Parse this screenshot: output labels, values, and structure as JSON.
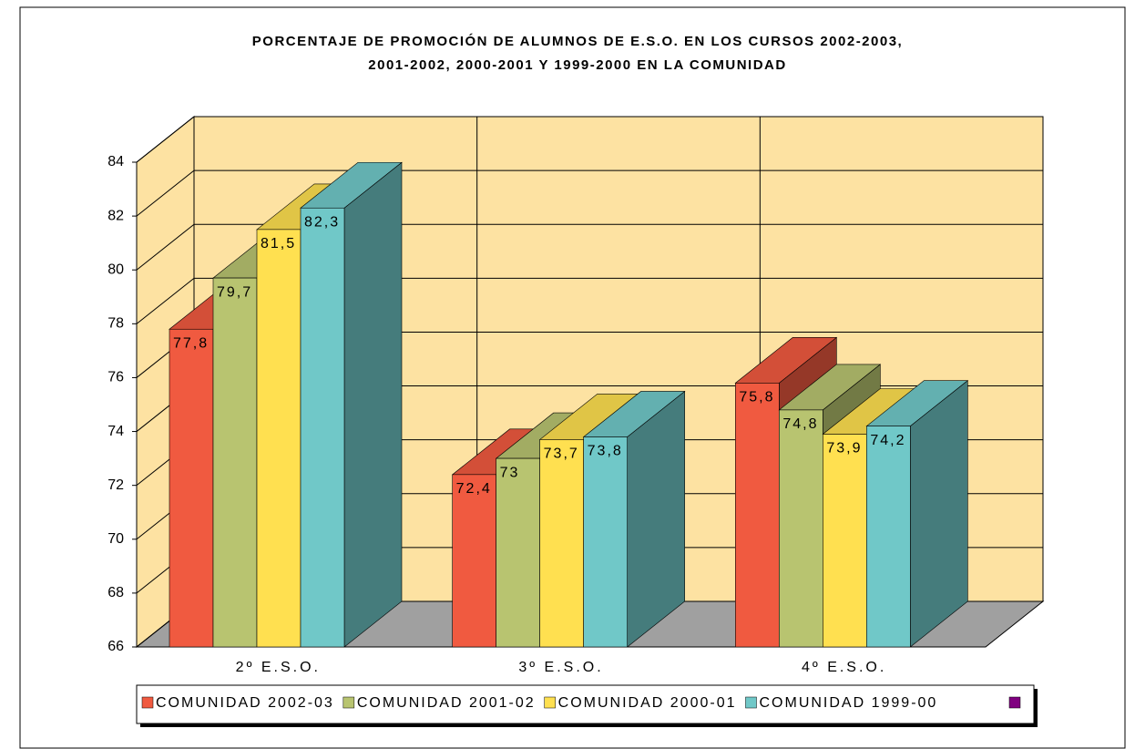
{
  "chart_data": {
    "type": "bar3d",
    "title": "PORCENTAJE DE PROMOCIÓN DE ALUMNOS DE E.S.O. EN LOS CURSOS 2002-2003,",
    "subtitle": "2001-2002, 2000-2001 Y 1999-2000 EN LA COMUNIDAD",
    "categories": [
      "2º  E.S.O.",
      "3º E.S.O.",
      "4º E.S.O."
    ],
    "series": [
      {
        "name": "COMUNIDAD 2002-03",
        "color": "#f05a40",
        "values": [
          77.8,
          72.4,
          75.8
        ],
        "value_labels": [
          "77,8",
          "72,4",
          "75,8"
        ]
      },
      {
        "name": "COMUNIDAD 2001-02",
        "color": "#b8c470",
        "values": [
          79.7,
          73,
          74.8
        ],
        "value_labels": [
          "79,7",
          "73",
          "74,8"
        ]
      },
      {
        "name": "COMUNIDAD 2000-01",
        "color": "#ffe050",
        "values": [
          81.5,
          73.7,
          73.9
        ],
        "value_labels": [
          "81,5",
          "73,7",
          "73,9"
        ]
      },
      {
        "name": "COMUNIDAD 1999-00",
        "color": "#70c8c8",
        "values": [
          82.3,
          73.8,
          74.2
        ],
        "value_labels": [
          "82,3",
          "73,8",
          "74,2"
        ]
      }
    ],
    "ylim": [
      66,
      84
    ],
    "yticks": [
      66,
      68,
      70,
      72,
      74,
      76,
      78,
      80,
      82,
      84
    ],
    "grid": true
  }
}
